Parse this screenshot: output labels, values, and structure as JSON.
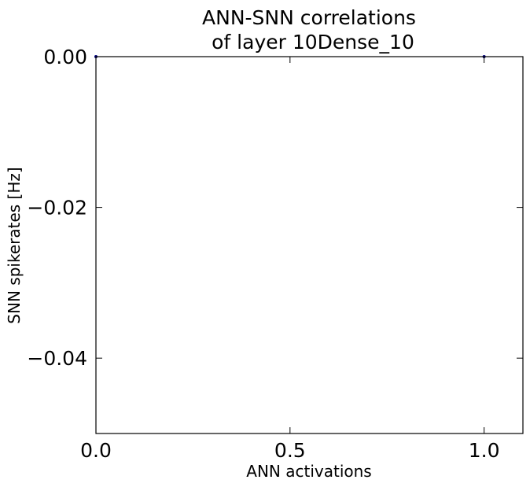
{
  "chart_data": {
    "type": "scatter",
    "title_lines": [
      "ANN-SNN correlations",
      "of layer 10Dense_10"
    ],
    "xlabel": "ANN activations",
    "ylabel": "SNN spikerates [Hz]",
    "xlim": [
      0.0,
      1.1
    ],
    "ylim": [
      -0.05,
      0.0
    ],
    "xticks": [
      0.0,
      0.5,
      1.0
    ],
    "xtick_labels": [
      "0.0",
      "0.5",
      "1.0"
    ],
    "yticks": [
      0.0,
      -0.02,
      -0.04
    ],
    "ytick_labels": [
      "0.00",
      "−0.02",
      "−0.04"
    ],
    "grid": false,
    "series": [
      {
        "x": [
          0.0,
          1.0
        ],
        "y": [
          0.0,
          0.0
        ],
        "color": "#00007f"
      }
    ]
  }
}
